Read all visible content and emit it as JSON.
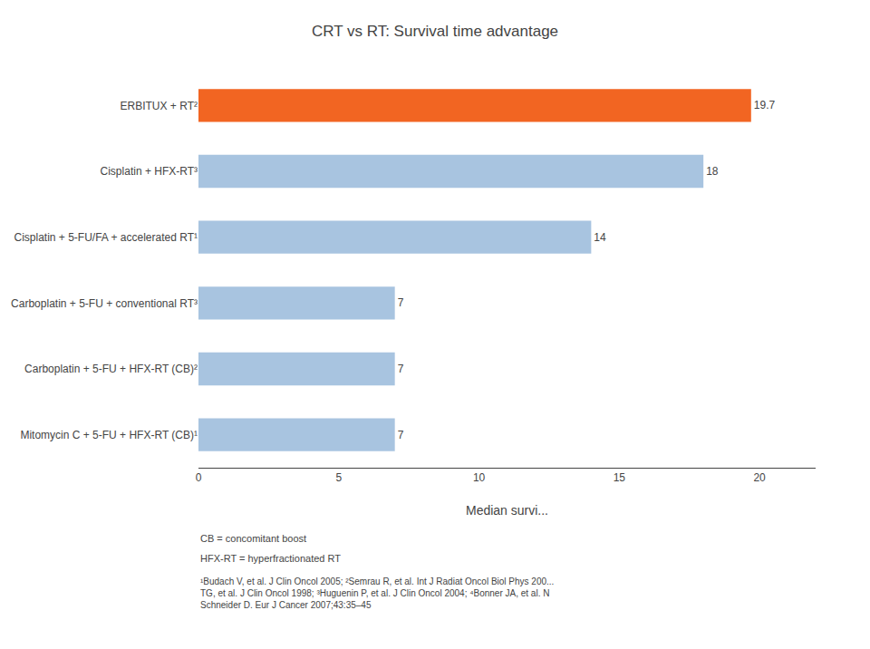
{
  "chart_data": {
    "type": "bar",
    "orientation": "horizontal",
    "title": "CRT vs RT: Survival time advantage",
    "categories": [
      "ERBITUX + RT²",
      "Cisplatin + HFX-RT³",
      "Cisplatin + 5-FU/FA + accelerated RT¹",
      "Carboplatin + 5-FU + conventional RT³",
      "Carboplatin + 5-FU + HFX-RT (CB)²",
      "Mitomycin C + 5-FU + HFX-RT (CB)¹"
    ],
    "values": [
      19.7,
      18,
      14,
      7,
      7,
      7
    ],
    "colors": [
      "#f26522",
      "#a8c4e0",
      "#a8c4e0",
      "#a8c4e0",
      "#a8c4e0",
      "#a8c4e0"
    ],
    "xlabel": "Median survi...",
    "xlim": [
      0,
      22
    ],
    "xticks": [
      0,
      5,
      10,
      15,
      20
    ],
    "data_labels": true,
    "grid": false,
    "annotations": [
      "CB = concomitant boost",
      "HFX-RT = hyperfractionated RT",
      "¹Budach V, et al. J Clin Oncol 2005; ²Semrau R, et al. Int J Radiat Oncol Biol Phys 200...\nTG, et al. J Clin Oncol 1998; ³Huguenin P, et al. J Clin Oncol 2004; ⁴Bonner JA, et al. N\nSchneider D. Eur J Cancer 2007;43:35–45"
    ]
  }
}
